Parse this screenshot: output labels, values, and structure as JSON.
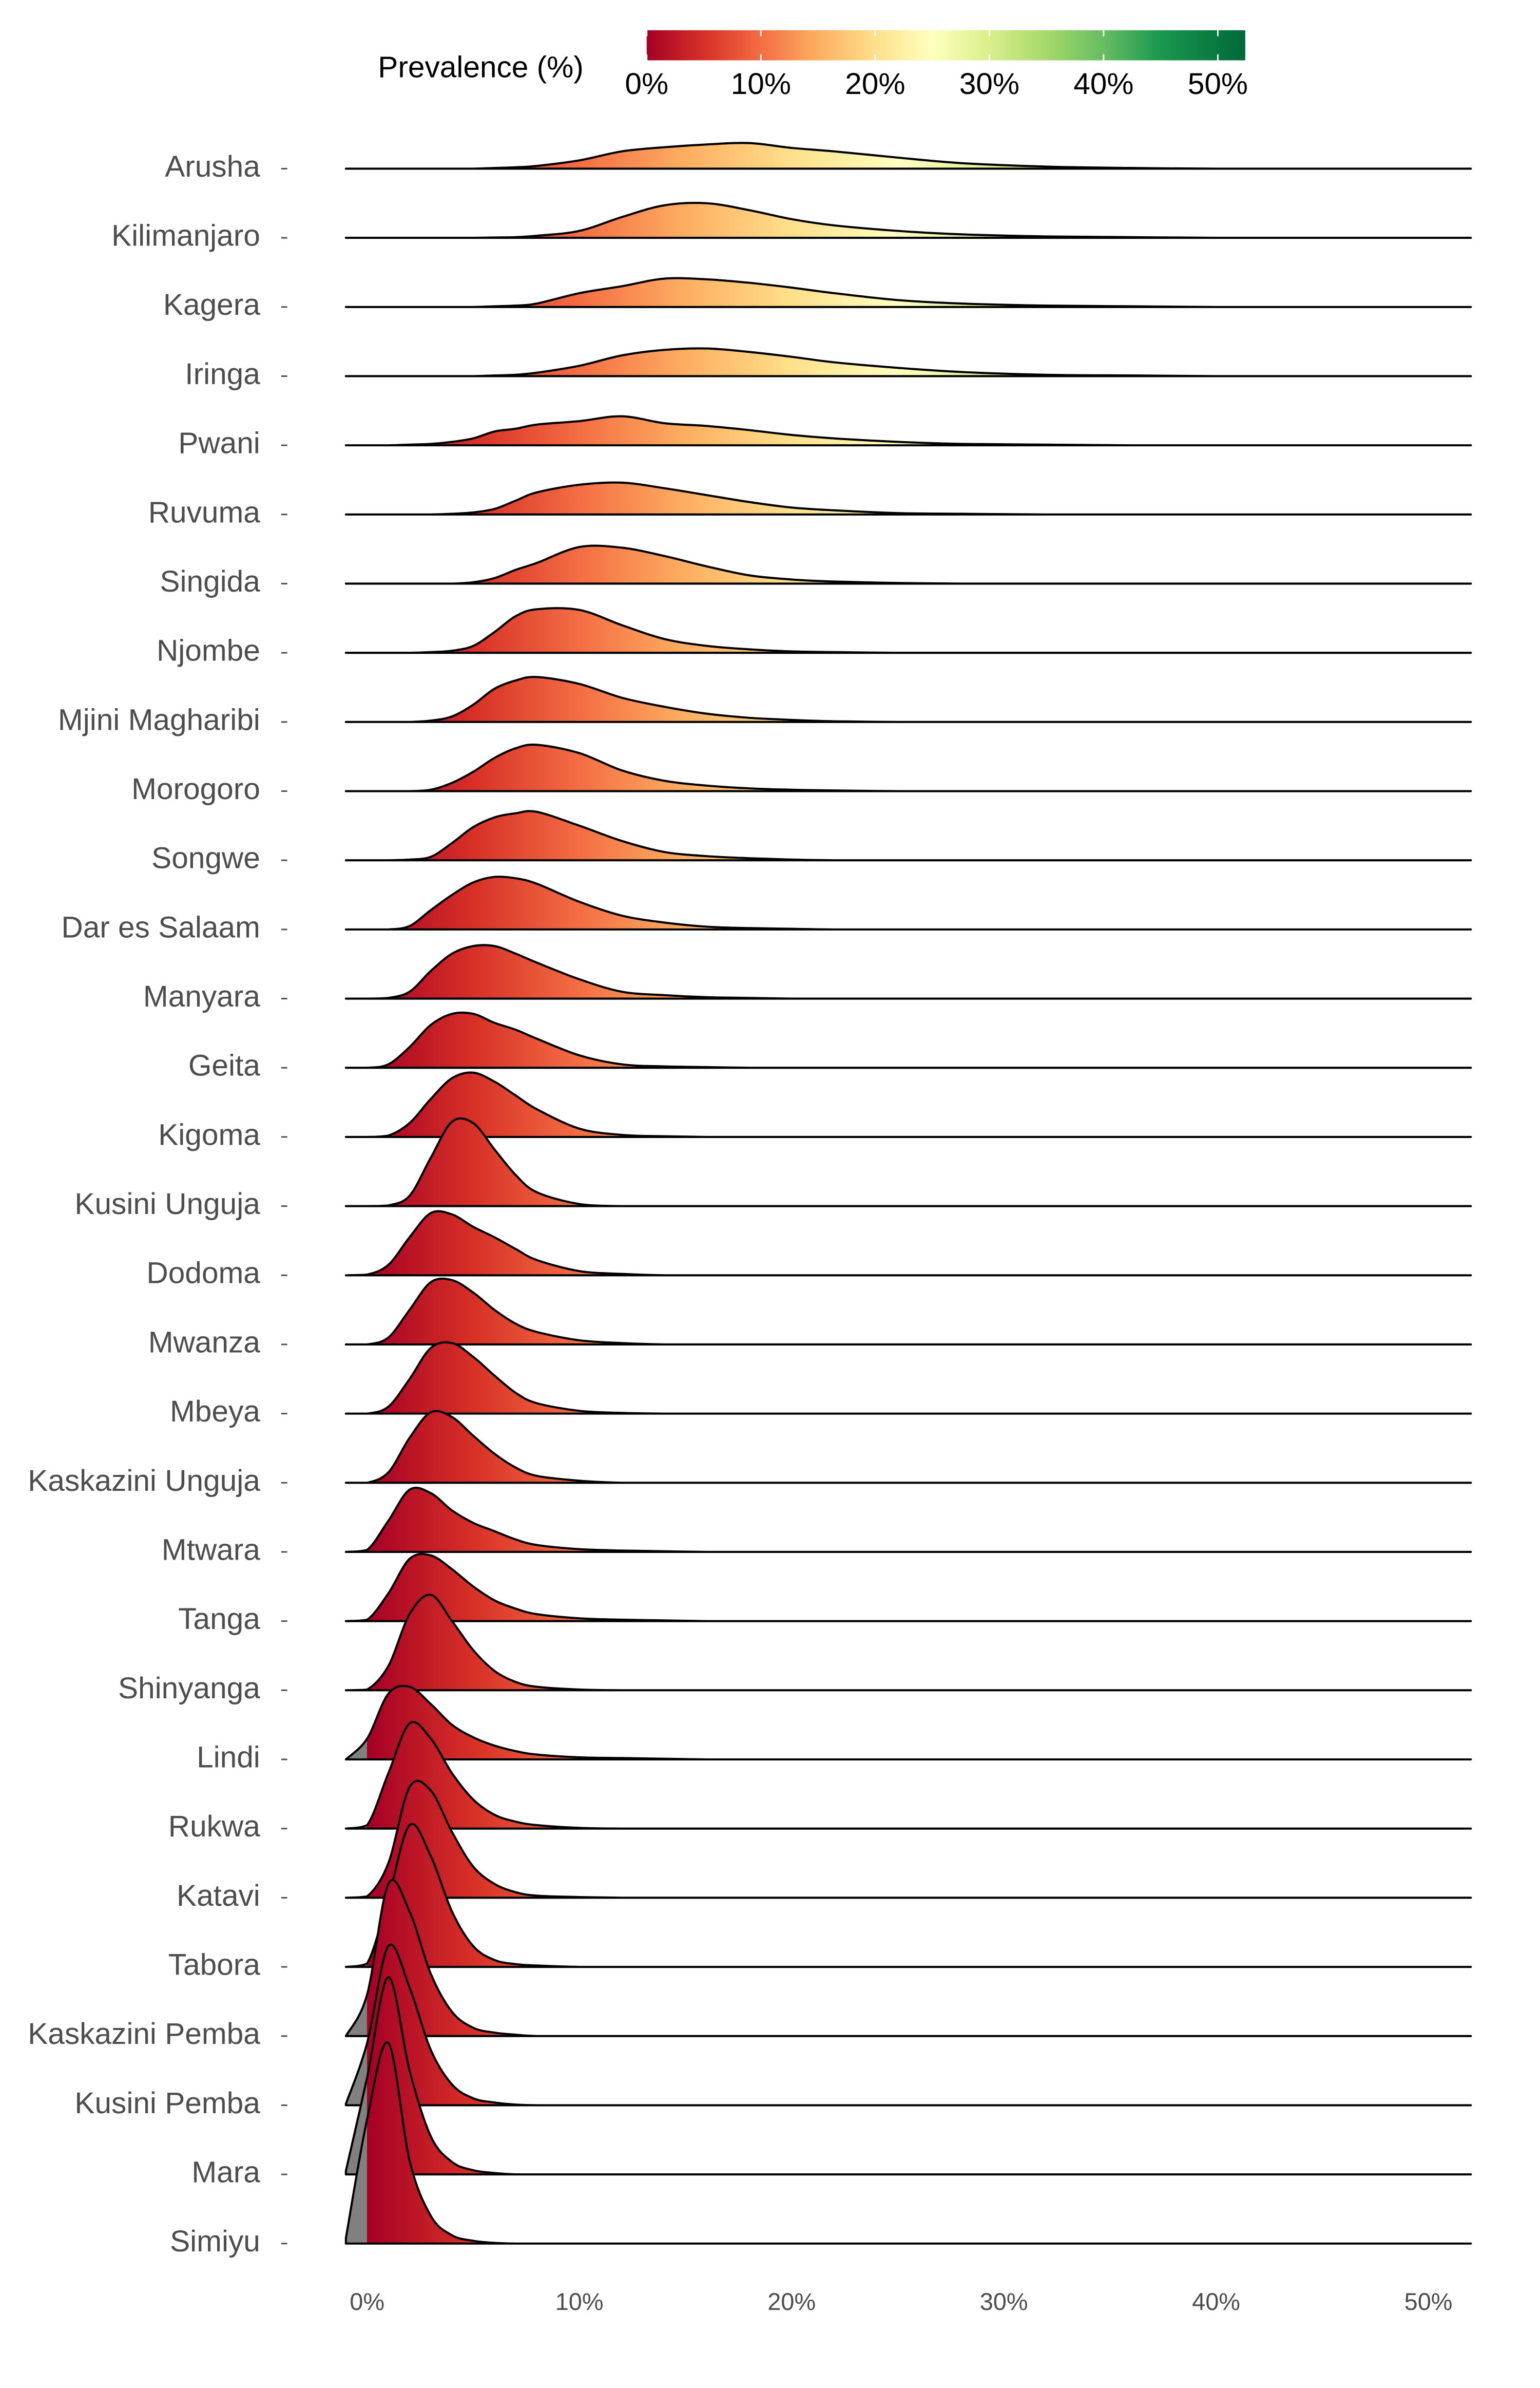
{
  "chart_data": {
    "type": "ridgeline",
    "colorbar_title": "Prevalence (%)",
    "clim": [
      0,
      52.4
    ],
    "cticks": [
      {
        "value": 0,
        "label": "0%"
      },
      {
        "value": 10,
        "label": "10%"
      },
      {
        "value": 20,
        "label": "20%"
      },
      {
        "value": 30,
        "label": "30%"
      },
      {
        "value": 40,
        "label": "40%"
      },
      {
        "value": 50,
        "label": "50%"
      }
    ],
    "colorscale": [
      [
        0,
        "#a50026"
      ],
      [
        5,
        "#d73027"
      ],
      [
        10,
        "#f46d43"
      ],
      [
        15,
        "#fdae61"
      ],
      [
        20,
        "#fee08b"
      ],
      [
        25,
        "#ffffbf"
      ],
      [
        30,
        "#d9ef8b"
      ],
      [
        35,
        "#a6d96a"
      ],
      [
        40,
        "#66bd63"
      ],
      [
        45,
        "#1a9850"
      ],
      [
        52.4,
        "#006837"
      ]
    ],
    "na_color": "#808080",
    "line_color": "#000000",
    "xlim": [
      -1,
      52
    ],
    "xticks": [
      {
        "value": 0,
        "label": "0%"
      },
      {
        "value": 10,
        "label": "10%"
      },
      {
        "value": 20,
        "label": "20%"
      },
      {
        "value": 30,
        "label": "30%"
      },
      {
        "value": 40,
        "label": "40%"
      },
      {
        "value": 50,
        "label": "50%"
      }
    ],
    "x": [
      -1,
      0,
      1,
      2,
      3,
      4,
      5,
      6,
      7,
      8,
      10,
      12,
      14,
      16,
      18,
      20,
      22,
      25,
      28,
      32,
      36,
      40,
      45,
      52
    ],
    "series": [
      {
        "name": "Arusha",
        "values": [
          0,
          0,
          0,
          0,
          0,
          0,
          0,
          0.01,
          0.02,
          0.04,
          0.12,
          0.25,
          0.31,
          0.35,
          0.37,
          0.3,
          0.25,
          0.16,
          0.08,
          0.03,
          0.01,
          0,
          0,
          0
        ]
      },
      {
        "name": "Kilimanjaro",
        "values": [
          0,
          0,
          0,
          0,
          0,
          0,
          0,
          0.005,
          0.01,
          0.03,
          0.1,
          0.3,
          0.47,
          0.5,
          0.4,
          0.27,
          0.18,
          0.1,
          0.05,
          0.02,
          0.01,
          0,
          0,
          0
        ]
      },
      {
        "name": "Kagera",
        "values": [
          0,
          0,
          0,
          0,
          0,
          0,
          0,
          0.01,
          0.02,
          0.05,
          0.2,
          0.3,
          0.41,
          0.4,
          0.35,
          0.28,
          0.2,
          0.1,
          0.05,
          0.02,
          0.01,
          0,
          0,
          0
        ]
      },
      {
        "name": "Iringa",
        "values": [
          0,
          0,
          0,
          0,
          0,
          0,
          0,
          0.01,
          0.02,
          0.05,
          0.15,
          0.3,
          0.38,
          0.4,
          0.35,
          0.28,
          0.2,
          0.12,
          0.06,
          0.02,
          0.01,
          0,
          0,
          0
        ]
      },
      {
        "name": "Pwani",
        "values": [
          0,
          0,
          0,
          0.01,
          0.02,
          0.05,
          0.1,
          0.2,
          0.24,
          0.3,
          0.35,
          0.42,
          0.32,
          0.28,
          0.22,
          0.15,
          0.1,
          0.05,
          0.02,
          0.01,
          0,
          0,
          0,
          0
        ]
      },
      {
        "name": "Ruvuma",
        "values": [
          0,
          0,
          0,
          0,
          0,
          0.01,
          0.03,
          0.08,
          0.2,
          0.32,
          0.43,
          0.46,
          0.38,
          0.28,
          0.18,
          0.1,
          0.06,
          0.02,
          0.01,
          0,
          0,
          0,
          0,
          0
        ]
      },
      {
        "name": "Singida",
        "values": [
          0,
          0,
          0,
          0,
          0,
          0,
          0.02,
          0.08,
          0.2,
          0.3,
          0.53,
          0.52,
          0.4,
          0.25,
          0.12,
          0.06,
          0.03,
          0.01,
          0,
          0,
          0,
          0,
          0,
          0
        ]
      },
      {
        "name": "Njombe",
        "values": [
          0,
          0,
          0,
          0,
          0.01,
          0.03,
          0.1,
          0.3,
          0.53,
          0.63,
          0.62,
          0.4,
          0.2,
          0.1,
          0.05,
          0.02,
          0.01,
          0,
          0,
          0,
          0,
          0,
          0,
          0
        ]
      },
      {
        "name": "Mjini Magharibi",
        "values": [
          0,
          0,
          0,
          0,
          0.02,
          0.08,
          0.25,
          0.48,
          0.6,
          0.65,
          0.55,
          0.35,
          0.22,
          0.12,
          0.06,
          0.03,
          0.01,
          0,
          0,
          0,
          0,
          0,
          0,
          0
        ]
      },
      {
        "name": "Morogoro",
        "values": [
          0,
          0,
          0,
          0,
          0.02,
          0.12,
          0.28,
          0.48,
          0.62,
          0.67,
          0.55,
          0.3,
          0.15,
          0.08,
          0.04,
          0.02,
          0.01,
          0,
          0,
          0,
          0,
          0,
          0,
          0
        ]
      },
      {
        "name": "Songwe",
        "values": [
          0,
          0,
          0,
          0.01,
          0.05,
          0.25,
          0.48,
          0.62,
          0.68,
          0.7,
          0.5,
          0.28,
          0.12,
          0.06,
          0.03,
          0.01,
          0,
          0,
          0,
          0,
          0,
          0,
          0,
          0
        ]
      },
      {
        "name": "Dar es Salaam",
        "values": [
          0,
          0,
          0,
          0.05,
          0.28,
          0.5,
          0.68,
          0.76,
          0.74,
          0.66,
          0.4,
          0.2,
          0.1,
          0.04,
          0.02,
          0.01,
          0,
          0,
          0,
          0,
          0,
          0,
          0,
          0
        ]
      },
      {
        "name": "Manyara",
        "values": [
          0,
          0,
          0.01,
          0.1,
          0.4,
          0.65,
          0.76,
          0.76,
          0.65,
          0.52,
          0.28,
          0.1,
          0.05,
          0.02,
          0.01,
          0,
          0,
          0,
          0,
          0,
          0,
          0,
          0,
          0
        ]
      },
      {
        "name": "Geita",
        "values": [
          0,
          0,
          0.05,
          0.3,
          0.62,
          0.78,
          0.78,
          0.65,
          0.55,
          0.42,
          0.18,
          0.05,
          0.02,
          0.01,
          0,
          0,
          0,
          0,
          0,
          0,
          0,
          0,
          0,
          0
        ]
      },
      {
        "name": "Kigoma",
        "values": [
          0,
          0,
          0.02,
          0.2,
          0.55,
          0.85,
          0.93,
          0.8,
          0.6,
          0.4,
          0.12,
          0.03,
          0.01,
          0,
          0,
          0,
          0,
          0,
          0,
          0,
          0,
          0,
          0,
          0
        ]
      },
      {
        "name": "Kusini Unguja",
        "values": [
          0,
          0,
          0.01,
          0.15,
          0.7,
          1.22,
          1.2,
          0.82,
          0.45,
          0.2,
          0.03,
          0,
          0,
          0,
          0,
          0,
          0,
          0,
          0,
          0,
          0,
          0,
          0,
          0
        ]
      },
      {
        "name": "Dodoma",
        "values": [
          0,
          0.01,
          0.15,
          0.55,
          0.9,
          0.88,
          0.7,
          0.55,
          0.38,
          0.22,
          0.06,
          0.02,
          0,
          0,
          0,
          0,
          0,
          0,
          0,
          0,
          0,
          0,
          0,
          0
        ]
      },
      {
        "name": "Mwanza",
        "values": [
          0,
          0,
          0.1,
          0.5,
          0.9,
          0.93,
          0.75,
          0.5,
          0.3,
          0.18,
          0.06,
          0.02,
          0,
          0,
          0,
          0,
          0,
          0,
          0,
          0,
          0,
          0,
          0,
          0
        ]
      },
      {
        "name": "Mbeya",
        "values": [
          0,
          0,
          0.1,
          0.5,
          0.95,
          1.02,
          0.82,
          0.55,
          0.3,
          0.15,
          0.04,
          0.01,
          0,
          0,
          0,
          0,
          0,
          0,
          0,
          0,
          0,
          0,
          0,
          0
        ]
      },
      {
        "name": "Kaskazini Unguja",
        "values": [
          0,
          0,
          0.15,
          0.65,
          1.02,
          0.95,
          0.68,
          0.42,
          0.22,
          0.1,
          0.03,
          0,
          0,
          0,
          0,
          0,
          0,
          0,
          0,
          0,
          0,
          0,
          0,
          0
        ]
      },
      {
        "name": "Mtwara",
        "values": [
          0,
          0.03,
          0.45,
          0.9,
          0.85,
          0.6,
          0.42,
          0.3,
          0.18,
          0.1,
          0.04,
          0.02,
          0.01,
          0,
          0,
          0,
          0,
          0,
          0,
          0,
          0,
          0,
          0,
          0
        ]
      },
      {
        "name": "Tanga",
        "values": [
          0,
          0.02,
          0.4,
          0.9,
          0.95,
          0.75,
          0.5,
          0.3,
          0.18,
          0.1,
          0.04,
          0.02,
          0.01,
          0,
          0,
          0,
          0,
          0,
          0,
          0,
          0,
          0,
          0,
          0
        ]
      },
      {
        "name": "Shinyanga",
        "values": [
          0,
          0.01,
          0.35,
          1.1,
          1.38,
          1.0,
          0.58,
          0.28,
          0.12,
          0.05,
          0.01,
          0,
          0,
          0,
          0,
          0,
          0,
          0,
          0,
          0,
          0,
          0,
          0,
          0
        ]
      },
      {
        "name": "Lindi",
        "values": [
          0,
          0.3,
          0.95,
          1.05,
          0.8,
          0.5,
          0.32,
          0.2,
          0.12,
          0.07,
          0.03,
          0.02,
          0.01,
          0,
          0,
          0,
          0,
          0,
          0,
          0,
          0,
          0,
          0,
          0
        ]
      },
      {
        "name": "Rukwa",
        "values": [
          0,
          0.05,
          0.8,
          1.52,
          1.3,
          0.8,
          0.42,
          0.2,
          0.1,
          0.05,
          0.01,
          0,
          0,
          0,
          0,
          0,
          0,
          0,
          0,
          0,
          0,
          0,
          0,
          0
        ]
      },
      {
        "name": "Katavi",
        "values": [
          0,
          0.02,
          0.5,
          1.6,
          1.55,
          0.95,
          0.45,
          0.2,
          0.08,
          0.03,
          0.01,
          0,
          0,
          0,
          0,
          0,
          0,
          0,
          0,
          0,
          0,
          0,
          0,
          0
        ]
      },
      {
        "name": "Tabora",
        "values": [
          0,
          0.05,
          1.0,
          2.05,
          1.6,
          0.8,
          0.3,
          0.1,
          0.04,
          0.02,
          0,
          0,
          0,
          0,
          0,
          0,
          0,
          0,
          0,
          0,
          0,
          0,
          0,
          0
        ]
      },
      {
        "name": "Kaskazini Pemba",
        "values": [
          0,
          0.6,
          2.2,
          1.8,
          0.9,
          0.35,
          0.12,
          0.05,
          0.02,
          0,
          0,
          0,
          0,
          0,
          0,
          0,
          0,
          0,
          0,
          0,
          0,
          0,
          0,
          0
        ]
      },
      {
        "name": "Kusini Pemba",
        "values": [
          0.02,
          0.9,
          2.3,
          1.7,
          0.8,
          0.3,
          0.1,
          0.04,
          0.01,
          0,
          0,
          0,
          0,
          0,
          0,
          0,
          0,
          0,
          0,
          0,
          0,
          0,
          0,
          0
        ]
      },
      {
        "name": "Mara",
        "values": [
          0.05,
          1.4,
          2.85,
          1.5,
          0.55,
          0.18,
          0.06,
          0.02,
          0,
          0,
          0,
          0,
          0,
          0,
          0,
          0,
          0,
          0,
          0,
          0,
          0,
          0,
          0,
          0
        ]
      },
      {
        "name": "Simiyu",
        "values": [
          0.08,
          1.8,
          2.9,
          1.2,
          0.4,
          0.12,
          0.04,
          0.01,
          0,
          0,
          0,
          0,
          0,
          0,
          0,
          0,
          0,
          0,
          0,
          0,
          0,
          0,
          0,
          0
        ]
      }
    ]
  }
}
